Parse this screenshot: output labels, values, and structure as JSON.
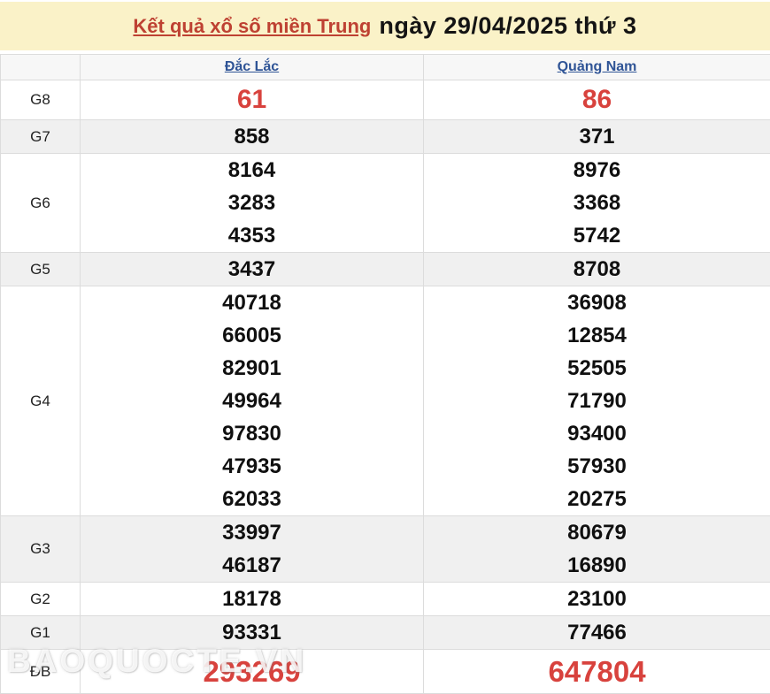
{
  "header": {
    "title_link": "Kết quả xổ số miền Trung",
    "title_date": "ngày 29/04/2025 thứ 3"
  },
  "table": {
    "corner": "",
    "columns": [
      "Đắc Lắc",
      "Quảng Nam"
    ],
    "rows": [
      {
        "label": "G8",
        "style": "red-big",
        "striped": false,
        "values": [
          [
            "61"
          ],
          [
            "86"
          ]
        ]
      },
      {
        "label": "G7",
        "style": "",
        "striped": true,
        "values": [
          [
            "858"
          ],
          [
            "371"
          ]
        ]
      },
      {
        "label": "G6",
        "style": "",
        "striped": false,
        "values": [
          [
            "8164",
            "3283",
            "4353"
          ],
          [
            "8976",
            "3368",
            "5742"
          ]
        ]
      },
      {
        "label": "G5",
        "style": "",
        "striped": true,
        "values": [
          [
            "3437"
          ],
          [
            "8708"
          ]
        ]
      },
      {
        "label": "G4",
        "style": "",
        "striped": false,
        "values": [
          [
            "40718",
            "66005",
            "82901",
            "49964",
            "97830",
            "47935",
            "62033"
          ],
          [
            "36908",
            "12854",
            "52505",
            "71790",
            "93400",
            "57930",
            "20275"
          ]
        ]
      },
      {
        "label": "G3",
        "style": "",
        "striped": true,
        "values": [
          [
            "33997",
            "46187"
          ],
          [
            "80679",
            "16890"
          ]
        ]
      },
      {
        "label": "G2",
        "style": "",
        "striped": false,
        "values": [
          [
            "18178"
          ],
          [
            "23100"
          ]
        ]
      },
      {
        "label": "G1",
        "style": "",
        "striped": true,
        "values": [
          [
            "93331"
          ],
          [
            "77466"
          ]
        ]
      },
      {
        "label": "ĐB",
        "style": "red-xl",
        "striped": false,
        "values": [
          [
            "293269"
          ],
          [
            "647804"
          ]
        ]
      }
    ]
  },
  "watermark": "BAOQUOCTE.VN",
  "colors": {
    "banner_bg": "#FAF2C8",
    "title_red": "#BE4132",
    "number_red": "#D8423D",
    "link_blue": "#2F5496",
    "stripe_gray": "#F0F0F0",
    "border_gray": "#DCDCDC"
  }
}
